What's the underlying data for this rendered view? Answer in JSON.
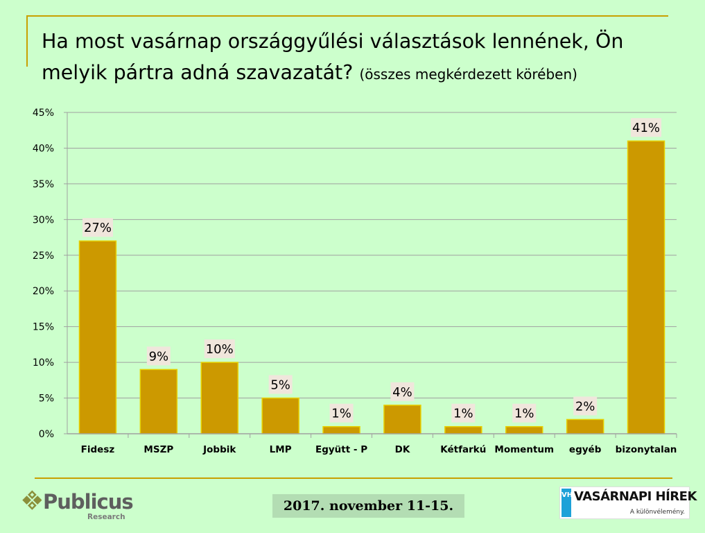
{
  "header": {
    "title_main": "Ha most vasárnap országgyűlési választások lennének, Ön melyik pártra adná szavazatát?",
    "title_sub": "(összes megkérdezett körében)"
  },
  "chart_data": {
    "type": "bar",
    "categories": [
      "Fidesz",
      "MSZP",
      "Jobbik",
      "LMP",
      "Együtt - P",
      "DK",
      "Kétfarkú",
      "Momentum",
      "egyéb",
      "bizonytalan"
    ],
    "values": [
      27,
      9,
      10,
      5,
      1,
      4,
      1,
      1,
      2,
      41
    ],
    "data_labels": [
      "27%",
      "9%",
      "10%",
      "5%",
      "1%",
      "4%",
      "1%",
      "1%",
      "2%",
      "41%"
    ],
    "ylim": [
      0,
      45
    ],
    "yticks": [
      0,
      5,
      10,
      15,
      20,
      25,
      30,
      35,
      40,
      45
    ],
    "ytick_labels": [
      "0%",
      "5%",
      "10%",
      "15%",
      "20%",
      "25%",
      "30%",
      "35%",
      "40%",
      "45%"
    ],
    "grid": true,
    "xlabel": "",
    "ylabel": "",
    "colors": {
      "bar_fill": "#cc9900",
      "bar_edge": "#e6d200",
      "grid": "#a0a0a0",
      "label_bg": "#f0e6dc"
    }
  },
  "footer": {
    "logo_name": "Publicus",
    "logo_sub": "Research",
    "date": "2017. november 11-15.",
    "partner_strip": "VH",
    "partner_name": "VASÁRNAPI HÍREK",
    "partner_tagline": "A különvélemény."
  },
  "colors": {
    "background": "#ccffcc",
    "accent_rule": "#c8a000",
    "date_box": "#b3ddb3"
  }
}
